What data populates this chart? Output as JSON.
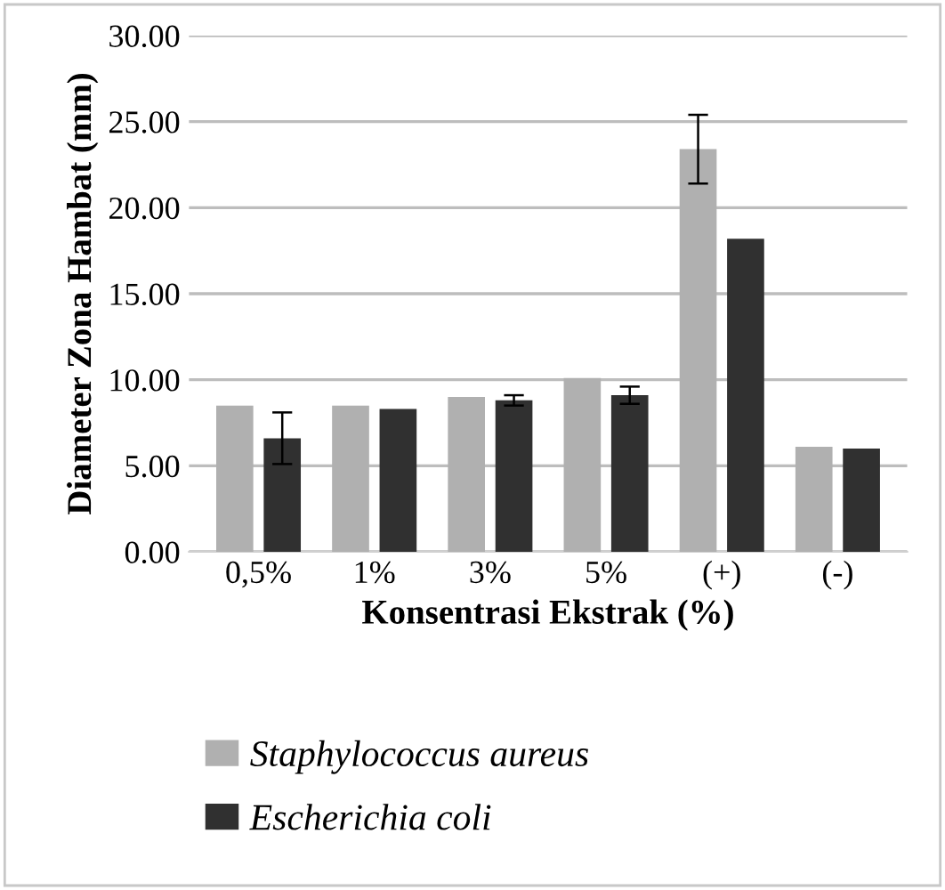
{
  "chart_data": {
    "type": "bar",
    "xlabel": "Konsentrasi Ekstrak (%)",
    "ylabel": "Diameter Zona Hambat (mm)",
    "categories": [
      "0,5%",
      "1%",
      "3%",
      "5%",
      "(+)",
      "(-)"
    ],
    "series": [
      {
        "name": "Staphylococcus aureus",
        "color": "#b0b0b0",
        "values": [
          8.5,
          8.5,
          9.0,
          10.1,
          23.4,
          6.1
        ],
        "errors": [
          null,
          null,
          null,
          null,
          2.0,
          null
        ]
      },
      {
        "name": "Escherichia coli",
        "color": "#303030",
        "values": [
          6.6,
          8.3,
          8.8,
          9.1,
          18.2,
          6.0
        ],
        "errors": [
          1.5,
          null,
          0.3,
          0.5,
          null,
          null
        ]
      }
    ],
    "ylim": [
      0,
      30
    ],
    "yticks": [
      {
        "value": 0,
        "label": "0.00"
      },
      {
        "value": 5,
        "label": "5.00"
      },
      {
        "value": 10,
        "label": "10.00"
      },
      {
        "value": 15,
        "label": "15.00"
      },
      {
        "value": 20,
        "label": "20.00"
      },
      {
        "value": 25,
        "label": "25.00"
      },
      {
        "value": 30,
        "label": "30.00"
      }
    ],
    "grid": "y",
    "legend": "bottom"
  }
}
